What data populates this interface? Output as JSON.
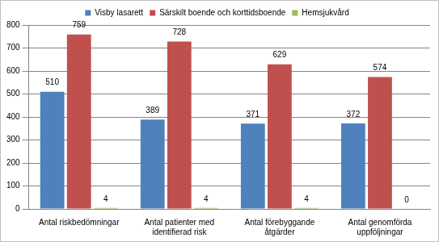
{
  "chart_data": {
    "type": "bar",
    "categories": [
      "Antal riskbedömningar",
      "Antal patienter med identifierad risk",
      "Antal förebyggande åtgärder",
      "Antal genomförda uppföljningar"
    ],
    "series": [
      {
        "name": "Visby lasarett",
        "color": "#4f81bd",
        "values": [
          510,
          389,
          371,
          372
        ]
      },
      {
        "name": "Särskilt boende och korttidsboende",
        "color": "#c0504d",
        "values": [
          759,
          728,
          629,
          574
        ]
      },
      {
        "name": "Hemsjukvård",
        "color": "#9bbb59",
        "values": [
          4,
          4,
          4,
          0
        ]
      }
    ],
    "ylim": [
      0,
      800
    ],
    "yticks": [
      0,
      100,
      200,
      300,
      400,
      500,
      600,
      700,
      800
    ],
    "grid": true,
    "legend": "top",
    "data_labels": true
  }
}
